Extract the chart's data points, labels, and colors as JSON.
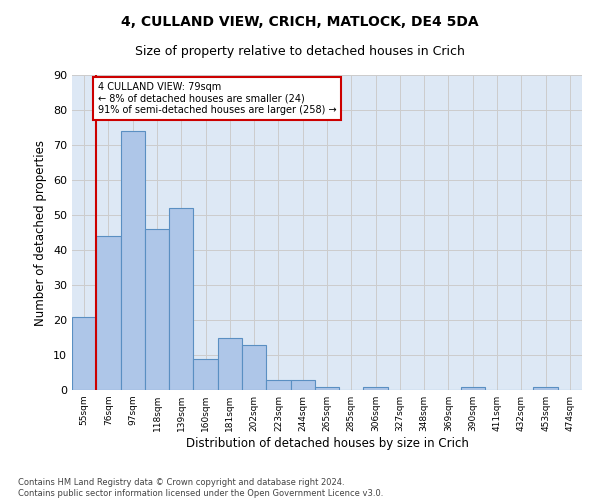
{
  "title": "4, CULLAND VIEW, CRICH, MATLOCK, DE4 5DA",
  "subtitle": "Size of property relative to detached houses in Crich",
  "xlabel": "Distribution of detached houses by size in Crich",
  "ylabel": "Number of detached properties",
  "categories": [
    "55sqm",
    "76sqm",
    "97sqm",
    "118sqm",
    "139sqm",
    "160sqm",
    "181sqm",
    "202sqm",
    "223sqm",
    "244sqm",
    "265sqm",
    "285sqm",
    "306sqm",
    "327sqm",
    "348sqm",
    "369sqm",
    "390sqm",
    "411sqm",
    "432sqm",
    "453sqm",
    "474sqm"
  ],
  "values": [
    21,
    44,
    74,
    46,
    52,
    9,
    15,
    13,
    3,
    3,
    1,
    0,
    1,
    0,
    0,
    0,
    1,
    0,
    0,
    1,
    0
  ],
  "bar_color": "#aec6e8",
  "bar_edge_color": "#5a8fc2",
  "vline_x_pos": 0.5,
  "vline_color": "#cc0000",
  "annotation_text_line1": "4 CULLAND VIEW: 79sqm",
  "annotation_text_line2": "← 8% of detached houses are smaller (24)",
  "annotation_text_line3": "91% of semi-detached houses are larger (258) →",
  "annotation_box_color": "#ffffff",
  "annotation_box_edge": "#cc0000",
  "ylim": [
    0,
    90
  ],
  "yticks": [
    0,
    10,
    20,
    30,
    40,
    50,
    60,
    70,
    80,
    90
  ],
  "grid_color": "#cccccc",
  "background_color": "#dde8f5",
  "footer": "Contains HM Land Registry data © Crown copyright and database right 2024.\nContains public sector information licensed under the Open Government Licence v3.0.",
  "title_fontsize": 10,
  "subtitle_fontsize": 9,
  "xlabel_fontsize": 8.5,
  "ylabel_fontsize": 8.5
}
